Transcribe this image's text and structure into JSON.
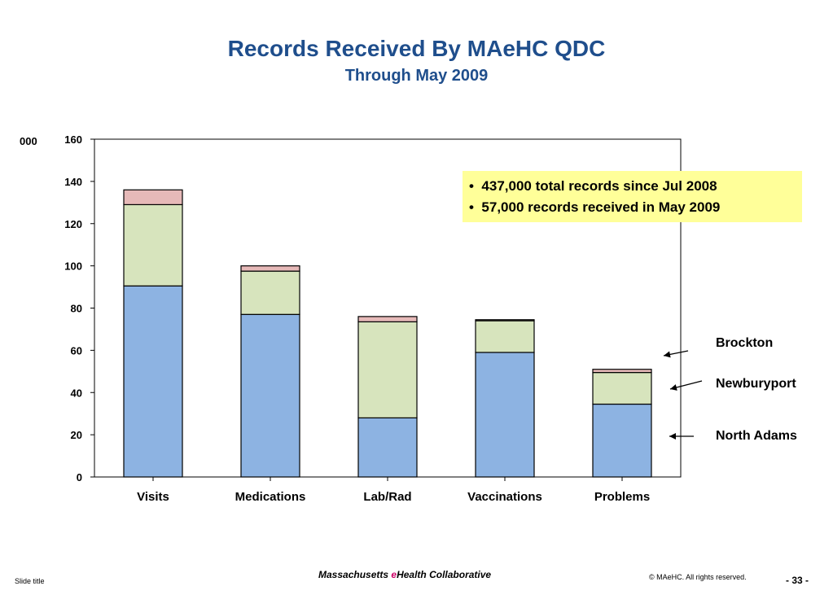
{
  "slide": {
    "title": "Records Received By MAeHC QDC",
    "subtitle": "Through May 2009",
    "unit_label": "000",
    "callout": [
      "437,000 total records since Jul 2008",
      "57,000 records received in May 2009"
    ],
    "footer": {
      "left": "Slide title",
      "org_pre": "Massachusetts ",
      "org_e": "e",
      "org_post": "Health Collaborative",
      "copyright": "© MAeHC.  All rights reserved.",
      "page": "- 33 -"
    }
  },
  "chart_data": {
    "type": "bar",
    "stacked": true,
    "categories": [
      "Visits",
      "Medications",
      "Lab/Rad",
      "Vaccinations",
      "Problems"
    ],
    "series": [
      {
        "name": "North Adams",
        "color": "#8db3e2",
        "values": [
          90.5,
          77,
          28,
          59,
          34.5
        ]
      },
      {
        "name": "Newburyport",
        "color": "#d7e4bd",
        "values": [
          38.5,
          20.5,
          45.5,
          15,
          15
        ]
      },
      {
        "name": "Brockton",
        "color": "#e6b9b8",
        "values": [
          7,
          2.5,
          2.5,
          0.5,
          1.5
        ]
      }
    ],
    "ylim": [
      0,
      160
    ],
    "yticks": [
      "0",
      "20",
      "40",
      "60",
      "80",
      "100",
      "120",
      "140",
      "160"
    ],
    "grid": false,
    "legend_placement": "right"
  }
}
